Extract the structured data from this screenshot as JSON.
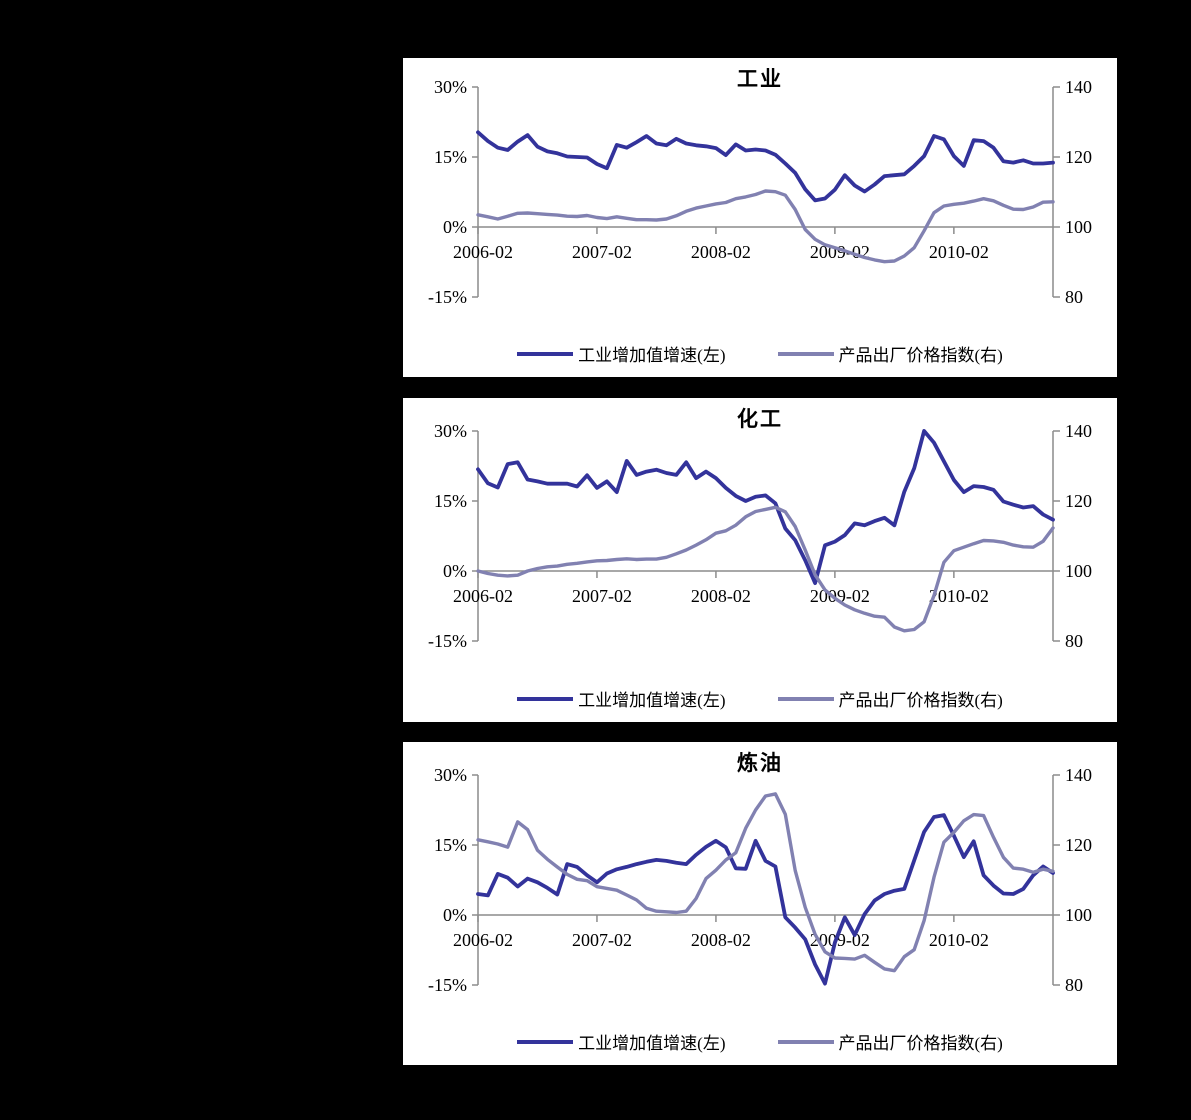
{
  "page": {
    "background_color": "#000000",
    "panel_color": "#ffffff"
  },
  "months": [
    "2006-02",
    "2006-03",
    "2006-04",
    "2006-05",
    "2006-06",
    "2006-07",
    "2006-08",
    "2006-09",
    "2006-10",
    "2006-11",
    "2006-12",
    "2007-01",
    "2007-02",
    "2007-03",
    "2007-04",
    "2007-05",
    "2007-06",
    "2007-07",
    "2007-08",
    "2007-09",
    "2007-10",
    "2007-11",
    "2007-12",
    "2008-01",
    "2008-02",
    "2008-03",
    "2008-04",
    "2008-05",
    "2008-06",
    "2008-07",
    "2008-08",
    "2008-09",
    "2008-10",
    "2008-11",
    "2008-12",
    "2009-01",
    "2009-02",
    "2009-03",
    "2009-04",
    "2009-05",
    "2009-06",
    "2009-07",
    "2009-08",
    "2009-09",
    "2009-10",
    "2009-11",
    "2009-12",
    "2010-01",
    "2010-02",
    "2010-03",
    "2010-04",
    "2010-05",
    "2010-06",
    "2010-07",
    "2010-08",
    "2010-09",
    "2010-10",
    "2010-11",
    "2010-12"
  ],
  "chart_data": [
    {
      "type": "line",
      "title": "工业",
      "grid": "off",
      "legend_position": "bottom",
      "left_axis": {
        "unit": "%",
        "range": [
          -15,
          30
        ],
        "ticks": [
          {
            "label": "30%",
            "value": 30
          },
          {
            "label": "15%",
            "value": 15
          },
          {
            "label": "0%",
            "value": 0
          },
          {
            "label": "-15%",
            "value": -15
          }
        ]
      },
      "right_axis": {
        "range": [
          80,
          140
        ],
        "ticks": [
          {
            "label": "140",
            "value": 140
          },
          {
            "label": "120",
            "value": 120
          },
          {
            "label": "100",
            "value": 100
          },
          {
            "label": "80",
            "value": 80
          }
        ]
      },
      "x_axis": {
        "ticks": [
          {
            "label": "2006-02",
            "index": 0
          },
          {
            "label": "2007-02",
            "index": 12
          },
          {
            "label": "2008-02",
            "index": 24
          },
          {
            "label": "2009-02",
            "index": 36
          },
          {
            "label": "2010-02",
            "index": 48
          }
        ]
      },
      "series": [
        {
          "name": "工业增加值增速(左)",
          "axis": "left",
          "color": "#33339b",
          "values": [
            20.3,
            18.4,
            17.0,
            16.5,
            18.3,
            19.7,
            17.2,
            16.2,
            15.8,
            15.1,
            15.0,
            14.9,
            13.5,
            12.6,
            17.6,
            17.0,
            18.2,
            19.5,
            17.9,
            17.5,
            18.9,
            17.9,
            17.5,
            17.3,
            16.9,
            15.4,
            17.7,
            16.4,
            16.6,
            16.4,
            15.5,
            13.6,
            11.6,
            8.1,
            5.7,
            6.1,
            8.0,
            11.1,
            8.9,
            7.6,
            9.1,
            10.9,
            11.1,
            11.3,
            13.1,
            15.2,
            19.5,
            18.8,
            15.2,
            13.1,
            18.6,
            18.4,
            17.0,
            14.1,
            13.8,
            14.3,
            13.6,
            13.6,
            13.8
          ]
        },
        {
          "name": "产品出厂价格指数(右)",
          "axis": "right",
          "color": "#8181b1",
          "values": [
            103.5,
            102.9,
            102.3,
            103.1,
            103.9,
            104.0,
            103.8,
            103.6,
            103.4,
            103.1,
            103.0,
            103.3,
            102.7,
            102.4,
            102.9,
            102.5,
            102.1,
            102.1,
            102.0,
            102.3,
            103.2,
            104.5,
            105.4,
            106.0,
            106.6,
            107.0,
            108.1,
            108.6,
            109.3,
            110.3,
            110.1,
            109.1,
            105.0,
            99.3,
            96.5,
            94.9,
            94.1,
            93.2,
            92.2,
            91.3,
            90.6,
            90.1,
            90.3,
            91.7,
            94.1,
            98.9,
            104.1,
            106.0,
            106.5,
            106.8,
            107.4,
            108.1,
            107.5,
            106.2,
            105.1,
            105.0,
            105.7,
            107.1,
            107.2
          ]
        }
      ]
    },
    {
      "type": "line",
      "title": "化工",
      "grid": "off",
      "legend_position": "bottom",
      "left_axis": {
        "unit": "%",
        "range": [
          -15,
          30
        ],
        "ticks": [
          {
            "label": "30%",
            "value": 30
          },
          {
            "label": "15%",
            "value": 15
          },
          {
            "label": "0%",
            "value": 0
          },
          {
            "label": "-15%",
            "value": -15
          }
        ]
      },
      "right_axis": {
        "range": [
          80,
          140
        ],
        "ticks": [
          {
            "label": "140",
            "value": 140
          },
          {
            "label": "120",
            "value": 120
          },
          {
            "label": "100",
            "value": 100
          },
          {
            "label": "80",
            "value": 80
          }
        ]
      },
      "x_axis": {
        "ticks": [
          {
            "label": "2006-02",
            "index": 0
          },
          {
            "label": "2007-02",
            "index": 12
          },
          {
            "label": "2008-02",
            "index": 24
          },
          {
            "label": "2009-02",
            "index": 36
          },
          {
            "label": "2010-02",
            "index": 48
          }
        ]
      },
      "series": [
        {
          "name": "工业增加值增速(左)",
          "axis": "left",
          "color": "#33339b",
          "values": [
            21.8,
            18.8,
            17.9,
            22.9,
            23.3,
            19.6,
            19.2,
            18.7,
            18.7,
            18.7,
            18.1,
            20.5,
            17.8,
            19.2,
            16.9,
            23.6,
            20.6,
            21.3,
            21.7,
            21.0,
            20.6,
            23.3,
            19.9,
            21.3,
            19.9,
            17.8,
            16.1,
            15.0,
            15.9,
            16.2,
            14.5,
            9.1,
            6.6,
            2.3,
            -2.6,
            5.5,
            6.3,
            7.7,
            10.2,
            9.8,
            10.7,
            11.4,
            9.8,
            17.0,
            22.0,
            30.0,
            27.5,
            23.5,
            19.5,
            16.9,
            18.2,
            18.0,
            17.4,
            14.9,
            14.2,
            13.6,
            13.9,
            12.1,
            11.0
          ]
        },
        {
          "name": "产品出厂价格指数(右)",
          "axis": "right",
          "color": "#8181b1",
          "values": [
            100.0,
            99.3,
            98.8,
            98.6,
            98.8,
            100.0,
            100.7,
            101.2,
            101.4,
            101.9,
            102.2,
            102.6,
            102.9,
            103.0,
            103.3,
            103.5,
            103.3,
            103.4,
            103.4,
            103.9,
            104.9,
            106.0,
            107.4,
            108.9,
            110.8,
            111.5,
            113.1,
            115.5,
            117.0,
            117.6,
            118.2,
            116.9,
            112.7,
            106.0,
            98.9,
            94.6,
            92.2,
            90.3,
            88.9,
            87.9,
            87.1,
            86.8,
            84.0,
            82.9,
            83.3,
            85.5,
            93.0,
            102.5,
            105.8,
            106.8,
            107.8,
            108.7,
            108.6,
            108.2,
            107.4,
            106.9,
            106.8,
            108.5,
            112.3
          ]
        }
      ]
    },
    {
      "type": "line",
      "title": "炼油",
      "grid": "off",
      "legend_position": "bottom",
      "left_axis": {
        "unit": "%",
        "range": [
          -15,
          30
        ],
        "ticks": [
          {
            "label": "30%",
            "value": 30
          },
          {
            "label": "15%",
            "value": 15
          },
          {
            "label": "0%",
            "value": 0
          },
          {
            "label": "-15%",
            "value": -15
          }
        ]
      },
      "right_axis": {
        "range": [
          80,
          140
        ],
        "ticks": [
          {
            "label": "140",
            "value": 140
          },
          {
            "label": "120",
            "value": 120
          },
          {
            "label": "100",
            "value": 100
          },
          {
            "label": "80",
            "value": 80
          }
        ]
      },
      "x_axis": {
        "ticks": [
          {
            "label": "2006-02",
            "index": 0
          },
          {
            "label": "2007-02",
            "index": 12
          },
          {
            "label": "2008-02",
            "index": 24
          },
          {
            "label": "2009-02",
            "index": 36
          },
          {
            "label": "2010-02",
            "index": 48
          }
        ]
      },
      "series": [
        {
          "name": "工业增加值增速(左)",
          "axis": "left",
          "color": "#33339b",
          "values": [
            4.5,
            4.2,
            8.8,
            8.0,
            6.1,
            7.8,
            7.0,
            5.8,
            4.4,
            10.9,
            10.3,
            8.5,
            7.0,
            8.9,
            9.8,
            10.3,
            10.9,
            11.4,
            11.8,
            11.6,
            11.2,
            10.9,
            12.9,
            14.6,
            15.9,
            14.5,
            10.0,
            9.9,
            15.9,
            11.6,
            10.4,
            -0.5,
            -2.7,
            -5.2,
            -10.6,
            -14.7,
            -5.9,
            -0.5,
            -4.3,
            0.2,
            3.1,
            4.5,
            5.2,
            5.6,
            11.7,
            17.8,
            21.0,
            21.4,
            17.0,
            12.4,
            15.8,
            8.5,
            6.3,
            4.6,
            4.5,
            5.6,
            8.5,
            10.4,
            9.0
          ]
        },
        {
          "name": "产品出厂价格指数(右)",
          "axis": "right",
          "color": "#8181b1",
          "values": [
            121.5,
            120.9,
            120.3,
            119.4,
            126.6,
            124.4,
            118.5,
            115.9,
            113.7,
            111.6,
            110.2,
            109.8,
            108.1,
            107.6,
            107.1,
            105.7,
            104.3,
            101.9,
            101.1,
            100.9,
            100.7,
            101.1,
            104.7,
            110.4,
            112.8,
            115.7,
            117.8,
            124.8,
            130.0,
            134.0,
            134.6,
            128.8,
            112.7,
            102.2,
            94.5,
            89.5,
            87.7,
            87.6,
            87.4,
            88.5,
            86.5,
            84.6,
            84.1,
            88.1,
            90.1,
            98.4,
            110.8,
            120.8,
            123.6,
            126.9,
            128.7,
            128.4,
            122.2,
            116.5,
            113.4,
            113.1,
            112.2,
            113.1,
            112.5
          ]
        }
      ]
    }
  ]
}
